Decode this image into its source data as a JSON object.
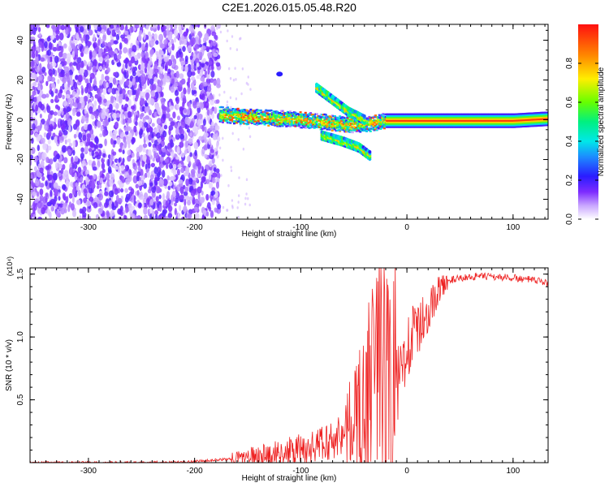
{
  "figure_title": "C2E1.2026.015.05.48.R20",
  "chart_data": [
    {
      "type": "heatmap",
      "xlabel": "Height of straight line (km)",
      "ylabel": "Frequency (Hz)",
      "xlim": [
        -355,
        133
      ],
      "ylim": [
        -50,
        48
      ],
      "x_ticks": [
        -300,
        -200,
        -100,
        0,
        100
      ],
      "x_tick_labels": [
        "-300",
        "-200",
        "-100",
        "0",
        "100"
      ],
      "y_ticks": [
        -40,
        -20,
        0,
        20,
        40
      ],
      "y_tick_labels": [
        "-40",
        "-20",
        "0",
        "20",
        "40"
      ],
      "colorbar": {
        "label": "Normalized spectral amplitude",
        "range": [
          0,
          1
        ],
        "ticks": [
          0.0,
          0.2,
          0.4,
          0.6,
          0.8
        ],
        "tick_labels": [
          "0.0",
          "0.2",
          "0.4",
          "0.6",
          "0.8"
        ]
      },
      "features": [
        {
          "name": "noise-region",
          "x_range": [
            -355,
            -177
          ],
          "description": "scattered low amplitude (violet) noise across all frequencies"
        },
        {
          "name": "main-signal",
          "x_range": [
            -177,
            133
          ],
          "freq_hz": [
            [
              -177,
              3
            ],
            [
              -150,
              2
            ],
            [
              -120,
              1
            ],
            [
              -90,
              0
            ],
            [
              -60,
              -2
            ],
            [
              -40,
              -2
            ],
            [
              -20,
              0
            ],
            [
              0,
              0
            ],
            [
              50,
              0
            ],
            [
              100,
              0
            ],
            [
              133,
              1
            ]
          ],
          "peak_amplitude": 0.95
        },
        {
          "name": "upper-branch",
          "points": [
            [
              -85,
              16
            ],
            [
              -70,
              10
            ],
            [
              -55,
              4
            ],
            [
              -40,
              0
            ]
          ]
        },
        {
          "name": "lower-branch",
          "points": [
            [
              -80,
              -8
            ],
            [
              -60,
              -11
            ],
            [
              -45,
              -14
            ],
            [
              -35,
              -18
            ]
          ]
        },
        {
          "name": "isolated-blob",
          "points": [
            [
              -120,
              23
            ]
          ]
        }
      ]
    },
    {
      "type": "line",
      "xlabel": "Height of straight line (km)",
      "ylabel": "SNR (10 * v/v)",
      "y_multiplier": "(x10⁴)",
      "xlim": [
        -355,
        133
      ],
      "ylim": [
        0,
        1.55
      ],
      "x_ticks": [
        -300,
        -200,
        -100,
        0,
        100
      ],
      "x_tick_labels": [
        "-300",
        "-200",
        "-100",
        "0",
        "100"
      ],
      "y_ticks": [
        0.5,
        1.0,
        1.5
      ],
      "y_tick_labels": [
        "0.5",
        "1.0",
        "1.5"
      ],
      "series": [
        {
          "name": "SNR",
          "color": "#ee2222",
          "x": [
            -355,
            -300,
            -250,
            -200,
            -165,
            -150,
            -130,
            -110,
            -90,
            -70,
            -55,
            -45,
            -38,
            -30,
            -25,
            -20,
            -15,
            -10,
            0,
            10,
            20,
            30,
            40,
            60,
            80,
            100,
            120,
            133
          ],
          "y": [
            0.0,
            0.0,
            0.0,
            0.01,
            0.03,
            0.05,
            0.07,
            0.09,
            0.12,
            0.18,
            0.28,
            0.42,
            0.55,
            0.75,
            0.9,
            0.7,
            0.4,
            0.55,
            0.95,
            1.05,
            1.2,
            1.38,
            1.45,
            1.48,
            1.48,
            1.47,
            1.45,
            1.43
          ]
        }
      ]
    }
  ]
}
